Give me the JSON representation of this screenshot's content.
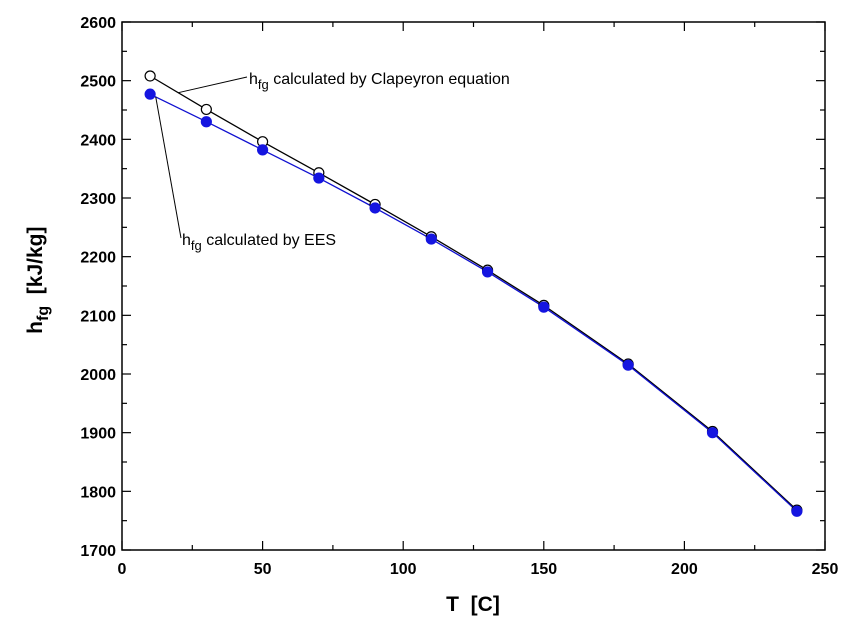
{
  "chart_data": {
    "type": "line",
    "title": "",
    "xlabel": "T  [C]",
    "ylabel_main": "h",
    "ylabel_sub": "fg",
    "ylabel_unit": "[kJ/kg]",
    "xlim": [
      0,
      250
    ],
    "ylim": [
      1700,
      2600
    ],
    "xticks": [
      0,
      50,
      100,
      150,
      200,
      250
    ],
    "yticks": [
      1700,
      1800,
      1900,
      2000,
      2100,
      2200,
      2300,
      2400,
      2500,
      2600
    ],
    "grid": false,
    "x": [
      10,
      30,
      50,
      70,
      90,
      110,
      130,
      150,
      180,
      210,
      240
    ],
    "series": [
      {
        "key": "clapeyron",
        "values": [
          2508,
          2451,
          2396,
          2343,
          2289,
          2234,
          2177,
          2117,
          2017,
          1902,
          1768
        ],
        "line_color": "#000000",
        "marker": "open-circle",
        "annotation": {
          "main": "h",
          "sub": "fg",
          "rest": " calculated by Clapeyron equation"
        }
      },
      {
        "key": "ees",
        "values": [
          2477,
          2430,
          2382,
          2334,
          2283,
          2230,
          2174,
          2114,
          2015,
          1900,
          1766
        ],
        "line_color": "#1010d0",
        "marker": "filled-circle",
        "marker_color": "#1515e0",
        "annotation": {
          "main": "h",
          "sub": "fg",
          "rest": " calculated by EES"
        }
      }
    ]
  }
}
